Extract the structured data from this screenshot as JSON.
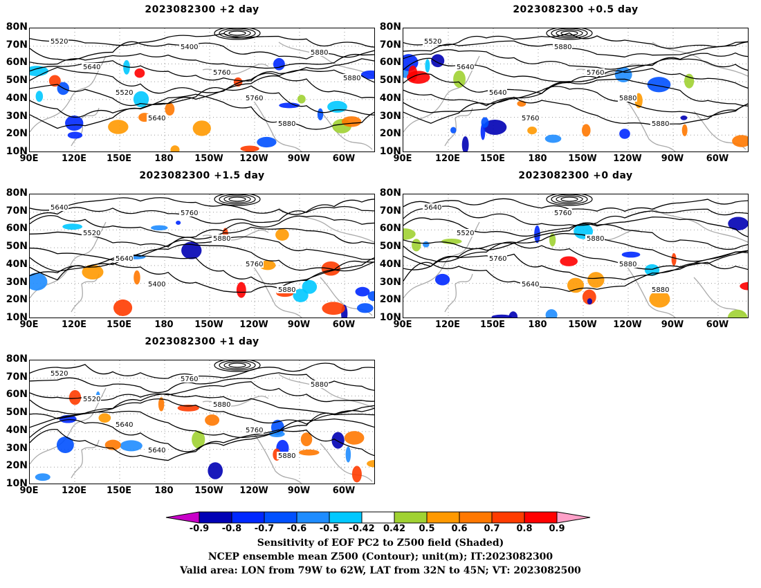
{
  "panels": [
    {
      "id": "p1",
      "title": "2023082300 +2 day"
    },
    {
      "id": "p2",
      "title": "2023082300 +0.5 day"
    },
    {
      "id": "p3",
      "title": "2023082300 +1.5 day"
    },
    {
      "id": "p4",
      "title": "2023082300 +0 day"
    },
    {
      "id": "p5",
      "title": "2023082300 +1 day"
    }
  ],
  "lat_ticks": [
    "80N",
    "70N",
    "60N",
    "50N",
    "40N",
    "30N",
    "20N",
    "10N"
  ],
  "lon_ticks": [
    "90E",
    "120E",
    "150E",
    "180",
    "150W",
    "120W",
    "90W",
    "60W"
  ],
  "contour_labels": {
    "p1": [
      "5520",
      "5640",
      "5520",
      "5640",
      "5400",
      "5760",
      "5760",
      "5880",
      "5880",
      "5880"
    ],
    "p2": [
      "5520",
      "5640",
      "5640",
      "5760",
      "5880",
      "5760",
      "5880",
      "5880"
    ],
    "p3": [
      "5640",
      "5520",
      "5640",
      "5400",
      "5760",
      "5880",
      "5760",
      "5880"
    ],
    "p4": [
      "5640",
      "5520",
      "5760",
      "5640",
      "5760",
      "5880",
      "5880",
      "5880"
    ],
    "p5": [
      "5520",
      "5520",
      "5640",
      "5640",
      "5760",
      "5880",
      "5760",
      "5880",
      "5880"
    ]
  },
  "colorbar": {
    "labels": [
      "-0.9",
      "-0.8",
      "-0.7",
      "-0.6",
      "-0.5",
      "-0.42",
      "0.42",
      "0.5",
      "0.6",
      "0.7",
      "0.8",
      "0.9"
    ],
    "colors": [
      "#0000b4",
      "#0028ff",
      "#0050ff",
      "#1e8cff",
      "#00c8ff",
      "#ffffff",
      "#a0d232",
      "#ff9900",
      "#ff7800",
      "#ff3c00",
      "#ff0000"
    ],
    "low_arrow_color": "#c800c8",
    "high_arrow_color": "#ffa0c8"
  },
  "caption": {
    "line1": "Sensitivity of EOF PC2 to Z500 field (Shaded)",
    "line2": "NCEP ensemble mean Z500 (Contour); unit(m); IT:2023082300",
    "line3": "Valid area: LON from 79W to 62W, LAT from 32N to 45N; VT: 2023082500"
  }
}
